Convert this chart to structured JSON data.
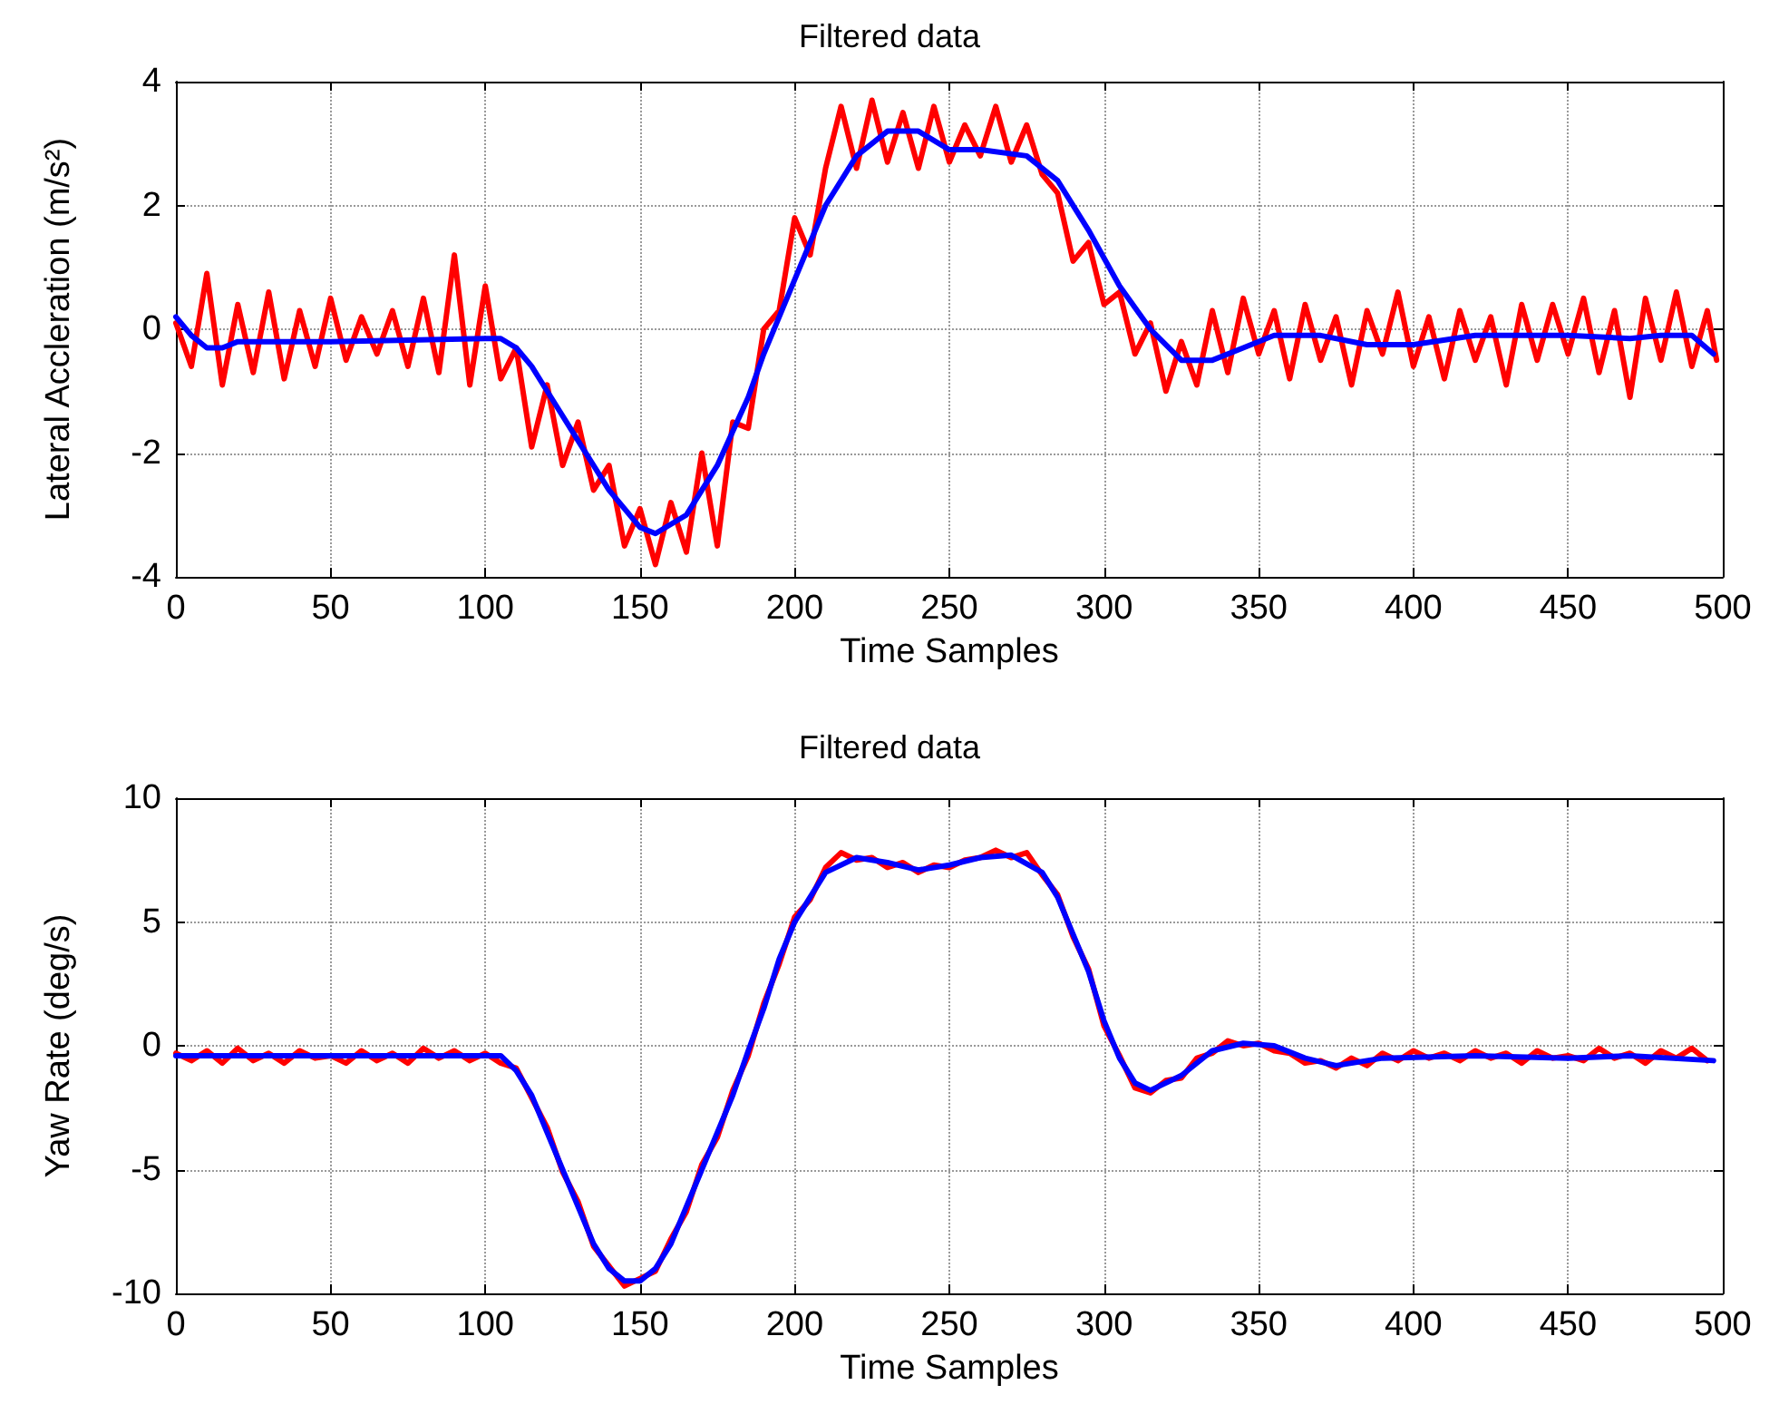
{
  "chart_data": [
    {
      "type": "line",
      "title": "Filtered data",
      "xlabel": "Time Samples",
      "ylabel": "Lateral Accleration (m/s²)",
      "xlim": [
        0,
        500
      ],
      "xticks": [
        0,
        50,
        100,
        150,
        200,
        250,
        300,
        350,
        400,
        450,
        500
      ],
      "ylim": [
        -4,
        4
      ],
      "yticks": [
        -4,
        -2,
        0,
        2,
        4
      ],
      "grid": true,
      "marker": "none",
      "line_style": "solid",
      "series": [
        {
          "color": "#ff0000",
          "x": [
            0,
            5,
            10,
            15,
            20,
            25,
            30,
            35,
            40,
            45,
            50,
            55,
            60,
            65,
            70,
            75,
            80,
            85,
            90,
            95,
            100,
            105,
            110,
            115,
            120,
            125,
            130,
            135,
            140,
            145,
            150,
            155,
            160,
            165,
            170,
            175,
            180,
            185,
            190,
            195,
            200,
            205,
            210,
            215,
            220,
            225,
            230,
            235,
            240,
            245,
            250,
            255,
            260,
            265,
            270,
            275,
            280,
            285,
            290,
            295,
            300,
            305,
            310,
            315,
            320,
            325,
            330,
            335,
            340,
            345,
            350,
            355,
            360,
            365,
            370,
            375,
            380,
            385,
            390,
            395,
            400,
            405,
            410,
            415,
            420,
            425,
            430,
            435,
            440,
            445,
            450,
            455,
            460,
            465,
            470,
            475,
            480,
            485,
            490,
            495,
            498
          ],
          "values": [
            0.1,
            -0.6,
            0.9,
            -0.9,
            0.4,
            -0.7,
            0.6,
            -0.8,
            0.3,
            -0.6,
            0.5,
            -0.5,
            0.2,
            -0.4,
            0.3,
            -0.6,
            0.5,
            -0.7,
            1.2,
            -0.9,
            0.7,
            -0.8,
            -0.3,
            -1.9,
            -0.9,
            -2.2,
            -1.5,
            -2.6,
            -2.2,
            -3.5,
            -2.9,
            -3.8,
            -2.8,
            -3.6,
            -2.0,
            -3.5,
            -1.5,
            -1.6,
            0.0,
            0.3,
            1.8,
            1.2,
            2.6,
            3.6,
            2.6,
            3.7,
            2.7,
            3.5,
            2.6,
            3.6,
            2.7,
            3.3,
            2.8,
            3.6,
            2.7,
            3.3,
            2.5,
            2.2,
            1.1,
            1.4,
            0.4,
            0.6,
            -0.4,
            0.1,
            -1.0,
            -0.2,
            -0.9,
            0.3,
            -0.7,
            0.5,
            -0.4,
            0.3,
            -0.8,
            0.4,
            -0.5,
            0.2,
            -0.9,
            0.3,
            -0.4,
            0.6,
            -0.6,
            0.2,
            -0.8,
            0.3,
            -0.5,
            0.2,
            -0.9,
            0.4,
            -0.5,
            0.4,
            -0.4,
            0.5,
            -0.7,
            0.3,
            -1.1,
            0.5,
            -0.5,
            0.6,
            -0.6,
            0.3,
            -0.5
          ]
        },
        {
          "color": "#0000ff",
          "x": [
            0,
            5,
            10,
            15,
            20,
            30,
            50,
            100,
            105,
            110,
            115,
            120,
            130,
            140,
            150,
            155,
            165,
            175,
            185,
            190,
            200,
            210,
            220,
            230,
            240,
            250,
            260,
            275,
            285,
            295,
            305,
            315,
            325,
            335,
            345,
            355,
            370,
            385,
            400,
            420,
            450,
            470,
            480,
            490,
            497
          ],
          "values": [
            0.2,
            -0.1,
            -0.3,
            -0.3,
            -0.2,
            -0.2,
            -0.2,
            -0.15,
            -0.15,
            -0.3,
            -0.6,
            -1.0,
            -1.8,
            -2.6,
            -3.2,
            -3.3,
            -3.0,
            -2.2,
            -1.1,
            -0.4,
            0.8,
            2.0,
            2.8,
            3.2,
            3.2,
            2.9,
            2.9,
            2.8,
            2.4,
            1.6,
            0.7,
            0.0,
            -0.5,
            -0.5,
            -0.3,
            -0.1,
            -0.1,
            -0.25,
            -0.25,
            -0.1,
            -0.1,
            -0.15,
            -0.1,
            -0.1,
            -0.4
          ]
        }
      ]
    },
    {
      "type": "line",
      "title": "Filtered data",
      "xlabel": "Time Samples",
      "ylabel": "Yaw Rate (deg/s)",
      "xlim": [
        0,
        500
      ],
      "xticks": [
        0,
        50,
        100,
        150,
        200,
        250,
        300,
        350,
        400,
        450,
        500
      ],
      "ylim": [
        -10,
        10
      ],
      "yticks": [
        -10,
        -5,
        0,
        5,
        10
      ],
      "grid": true,
      "marker": "none",
      "line_style": "solid",
      "series": [
        {
          "color": "#ff0000",
          "x": [
            0,
            5,
            10,
            15,
            20,
            25,
            30,
            35,
            40,
            45,
            50,
            55,
            60,
            65,
            70,
            75,
            80,
            85,
            90,
            95,
            100,
            105,
            110,
            115,
            120,
            125,
            130,
            135,
            140,
            145,
            150,
            155,
            160,
            165,
            170,
            175,
            180,
            185,
            190,
            195,
            200,
            205,
            210,
            215,
            220,
            225,
            230,
            235,
            240,
            245,
            250,
            255,
            260,
            265,
            270,
            275,
            280,
            285,
            290,
            295,
            300,
            305,
            310,
            315,
            320,
            325,
            330,
            335,
            340,
            345,
            350,
            355,
            360,
            365,
            370,
            375,
            380,
            385,
            390,
            395,
            400,
            405,
            410,
            415,
            420,
            425,
            430,
            435,
            440,
            445,
            450,
            455,
            460,
            465,
            470,
            475,
            480,
            485,
            490,
            495
          ],
          "values": [
            -0.3,
            -0.6,
            -0.2,
            -0.7,
            -0.1,
            -0.6,
            -0.3,
            -0.7,
            -0.2,
            -0.5,
            -0.4,
            -0.7,
            -0.2,
            -0.6,
            -0.3,
            -0.7,
            -0.1,
            -0.5,
            -0.2,
            -0.6,
            -0.3,
            -0.7,
            -0.9,
            -2.1,
            -3.3,
            -5.1,
            -6.3,
            -8.1,
            -8.9,
            -9.7,
            -9.4,
            -9.1,
            -7.8,
            -6.7,
            -4.8,
            -3.7,
            -1.8,
            -0.4,
            1.7,
            3.3,
            5.2,
            5.9,
            7.2,
            7.8,
            7.5,
            7.6,
            7.2,
            7.4,
            7.0,
            7.3,
            7.2,
            7.5,
            7.6,
            7.9,
            7.6,
            7.8,
            6.9,
            6.1,
            4.4,
            3.1,
            0.8,
            -0.4,
            -1.7,
            -1.9,
            -1.4,
            -1.3,
            -0.5,
            -0.3,
            0.2,
            0.0,
            0.1,
            -0.2,
            -0.3,
            -0.7,
            -0.6,
            -0.9,
            -0.5,
            -0.8,
            -0.3,
            -0.6,
            -0.2,
            -0.5,
            -0.3,
            -0.6,
            -0.2,
            -0.5,
            -0.3,
            -0.7,
            -0.2,
            -0.5,
            -0.4,
            -0.6,
            -0.1,
            -0.5,
            -0.3,
            -0.7,
            -0.2,
            -0.5,
            -0.1,
            -0.6
          ]
        },
        {
          "color": "#0000ff",
          "x": [
            0,
            105,
            110,
            115,
            120,
            125,
            130,
            135,
            140,
            145,
            150,
            155,
            160,
            165,
            170,
            175,
            180,
            185,
            190,
            195,
            200,
            205,
            210,
            220,
            230,
            240,
            250,
            260,
            270,
            280,
            285,
            290,
            295,
            300,
            305,
            310,
            315,
            325,
            335,
            345,
            355,
            365,
            375,
            390,
            420,
            450,
            470,
            497
          ],
          "values": [
            -0.4,
            -0.4,
            -1.0,
            -2.0,
            -3.5,
            -5.0,
            -6.5,
            -8.0,
            -9.0,
            -9.5,
            -9.5,
            -9.0,
            -8.0,
            -6.5,
            -5.0,
            -3.5,
            -2.0,
            -0.2,
            1.5,
            3.5,
            5.0,
            6.0,
            7.0,
            7.6,
            7.4,
            7.1,
            7.3,
            7.6,
            7.7,
            7.0,
            6.0,
            4.5,
            3.0,
            1.0,
            -0.5,
            -1.5,
            -1.8,
            -1.2,
            -0.2,
            0.1,
            0.0,
            -0.5,
            -0.8,
            -0.5,
            -0.4,
            -0.5,
            -0.4,
            -0.6
          ]
        }
      ]
    }
  ]
}
